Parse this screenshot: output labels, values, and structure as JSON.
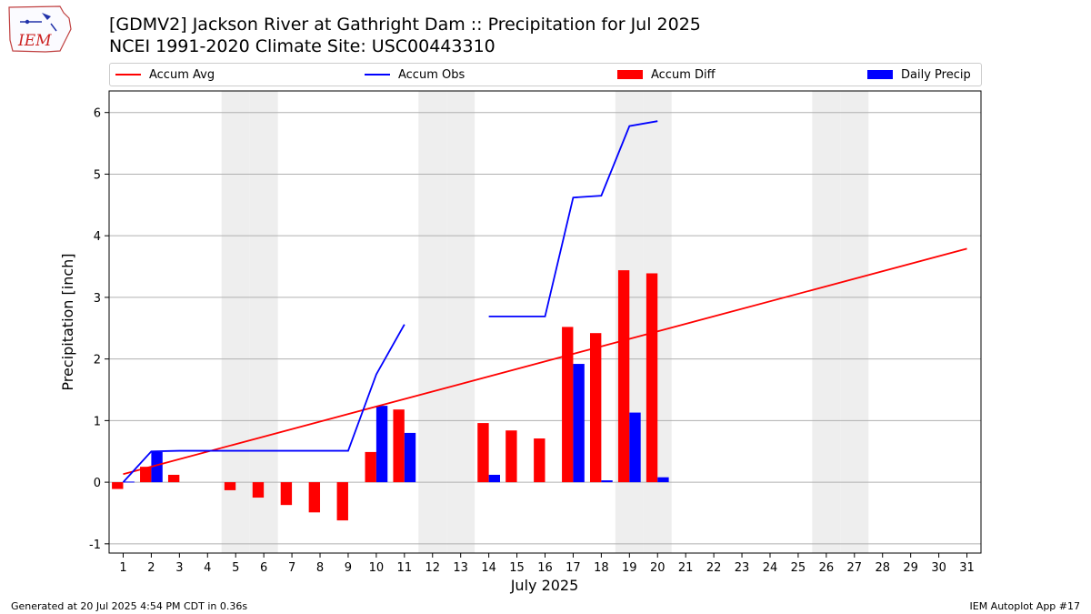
{
  "logo_text": "IEM",
  "colors": {
    "avg": "#ff0000",
    "obs": "#0000ff",
    "diff": "#ff0000",
    "daily": "#0000ff",
    "weekend": "#eeeeee",
    "grid": "#b0b0b0"
  },
  "legend": {
    "accum_avg": "Accum Avg",
    "accum_obs": "Accum Obs",
    "accum_diff": "Accum Diff",
    "daily_precip": "Daily Precip",
    "placement": "top, above plot"
  },
  "footer": {
    "generated": "Generated at 20 Jul 2025 4:54 PM CDT in 0.36s",
    "app": "IEM Autoplot App #17"
  },
  "chart_data": {
    "type": "bar",
    "title": "[GDMV2] Jackson River at Gathright Dam :: Precipitation for Jul 2025",
    "subtitle": "NCEI 1991-2020 Climate Site: USC00443310",
    "xlabel": "July 2025",
    "ylabel": "Precipitation [inch]",
    "ylim": [
      -1.15,
      6.35
    ],
    "yticks": [
      -1,
      0,
      1,
      2,
      3,
      4,
      5,
      6
    ],
    "xlim": [
      0.5,
      31.5
    ],
    "x": [
      1,
      2,
      3,
      4,
      5,
      6,
      7,
      8,
      9,
      10,
      11,
      12,
      13,
      14,
      15,
      16,
      17,
      18,
      19,
      20,
      21,
      22,
      23,
      24,
      25,
      26,
      27,
      28,
      29,
      30,
      31
    ],
    "grid": "horizontal",
    "weekend_days": [
      5,
      6,
      12,
      13,
      19,
      20,
      26,
      27
    ],
    "accum_avg": {
      "name": "Accum Avg",
      "x": [
        1,
        31
      ],
      "values": [
        0.13,
        3.79
      ]
    },
    "accum_obs": {
      "name": "Accum Obs",
      "segments": [
        {
          "x": [
            1,
            2,
            3,
            4,
            5,
            6,
            7,
            8,
            9,
            10,
            11
          ],
          "values": [
            0.0,
            0.5,
            0.51,
            0.51,
            0.51,
            0.51,
            0.51,
            0.51,
            0.51,
            1.75,
            2.56
          ]
        },
        {
          "x": [
            14,
            15,
            16,
            17,
            18,
            19,
            20
          ],
          "values": [
            2.69,
            2.69,
            2.69,
            4.62,
            4.65,
            5.78,
            5.86
          ]
        }
      ]
    },
    "accum_diff": {
      "name": "Accum Diff",
      "x": [
        1,
        2,
        3,
        5,
        6,
        7,
        8,
        9,
        10,
        11,
        14,
        15,
        16,
        17,
        18,
        19,
        20
      ],
      "values": [
        -0.11,
        0.25,
        0.12,
        -0.13,
        -0.25,
        -0.37,
        -0.49,
        -0.62,
        0.49,
        1.18,
        0.96,
        0.84,
        0.71,
        2.52,
        2.42,
        3.44,
        3.39
      ]
    },
    "daily_precip": {
      "name": "Daily Precip",
      "x": [
        1,
        2,
        10,
        11,
        14,
        17,
        18,
        19,
        20
      ],
      "values": [
        0.01,
        0.49,
        1.24,
        0.8,
        0.12,
        1.92,
        0.03,
        1.13,
        0.08
      ]
    }
  }
}
